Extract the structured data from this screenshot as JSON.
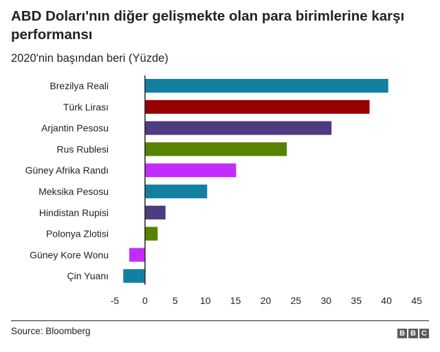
{
  "chart_data": {
    "type": "bar",
    "orientation": "horizontal",
    "title": "ABD Doları'nın diğer gelişmekte olan para birimlerine karşı performansı",
    "subtitle": "2020'nin başından beri (Yüzde)",
    "categories": [
      "Brezilya Reali",
      "Türk Lirası",
      "Arjantin Pesosu",
      "Rus Rublesi",
      "Güney Afrika Randı",
      "Meksika Pesosu",
      "Hindistan Rupisi",
      "Polonya Zlotisi",
      "Güney Kore Wonu",
      "Çin Yuanı"
    ],
    "values": [
      40.3,
      37.2,
      30.9,
      23.5,
      15.1,
      10.3,
      3.4,
      2.1,
      -2.6,
      -3.6
    ],
    "colors": [
      "#1380a1",
      "#990000",
      "#4f3b80",
      "#588300",
      "#c42bff",
      "#1380a1",
      "#4f3b80",
      "#588300",
      "#c42bff",
      "#1380a1"
    ],
    "x_ticks": [
      -5,
      0,
      5,
      10,
      15,
      20,
      25,
      30,
      35,
      40,
      45
    ],
    "xlim": [
      -5,
      45
    ],
    "grid": false,
    "legend": "none"
  },
  "footer": {
    "source": "Source: Bloomberg",
    "logo": [
      "B",
      "B",
      "C"
    ]
  }
}
